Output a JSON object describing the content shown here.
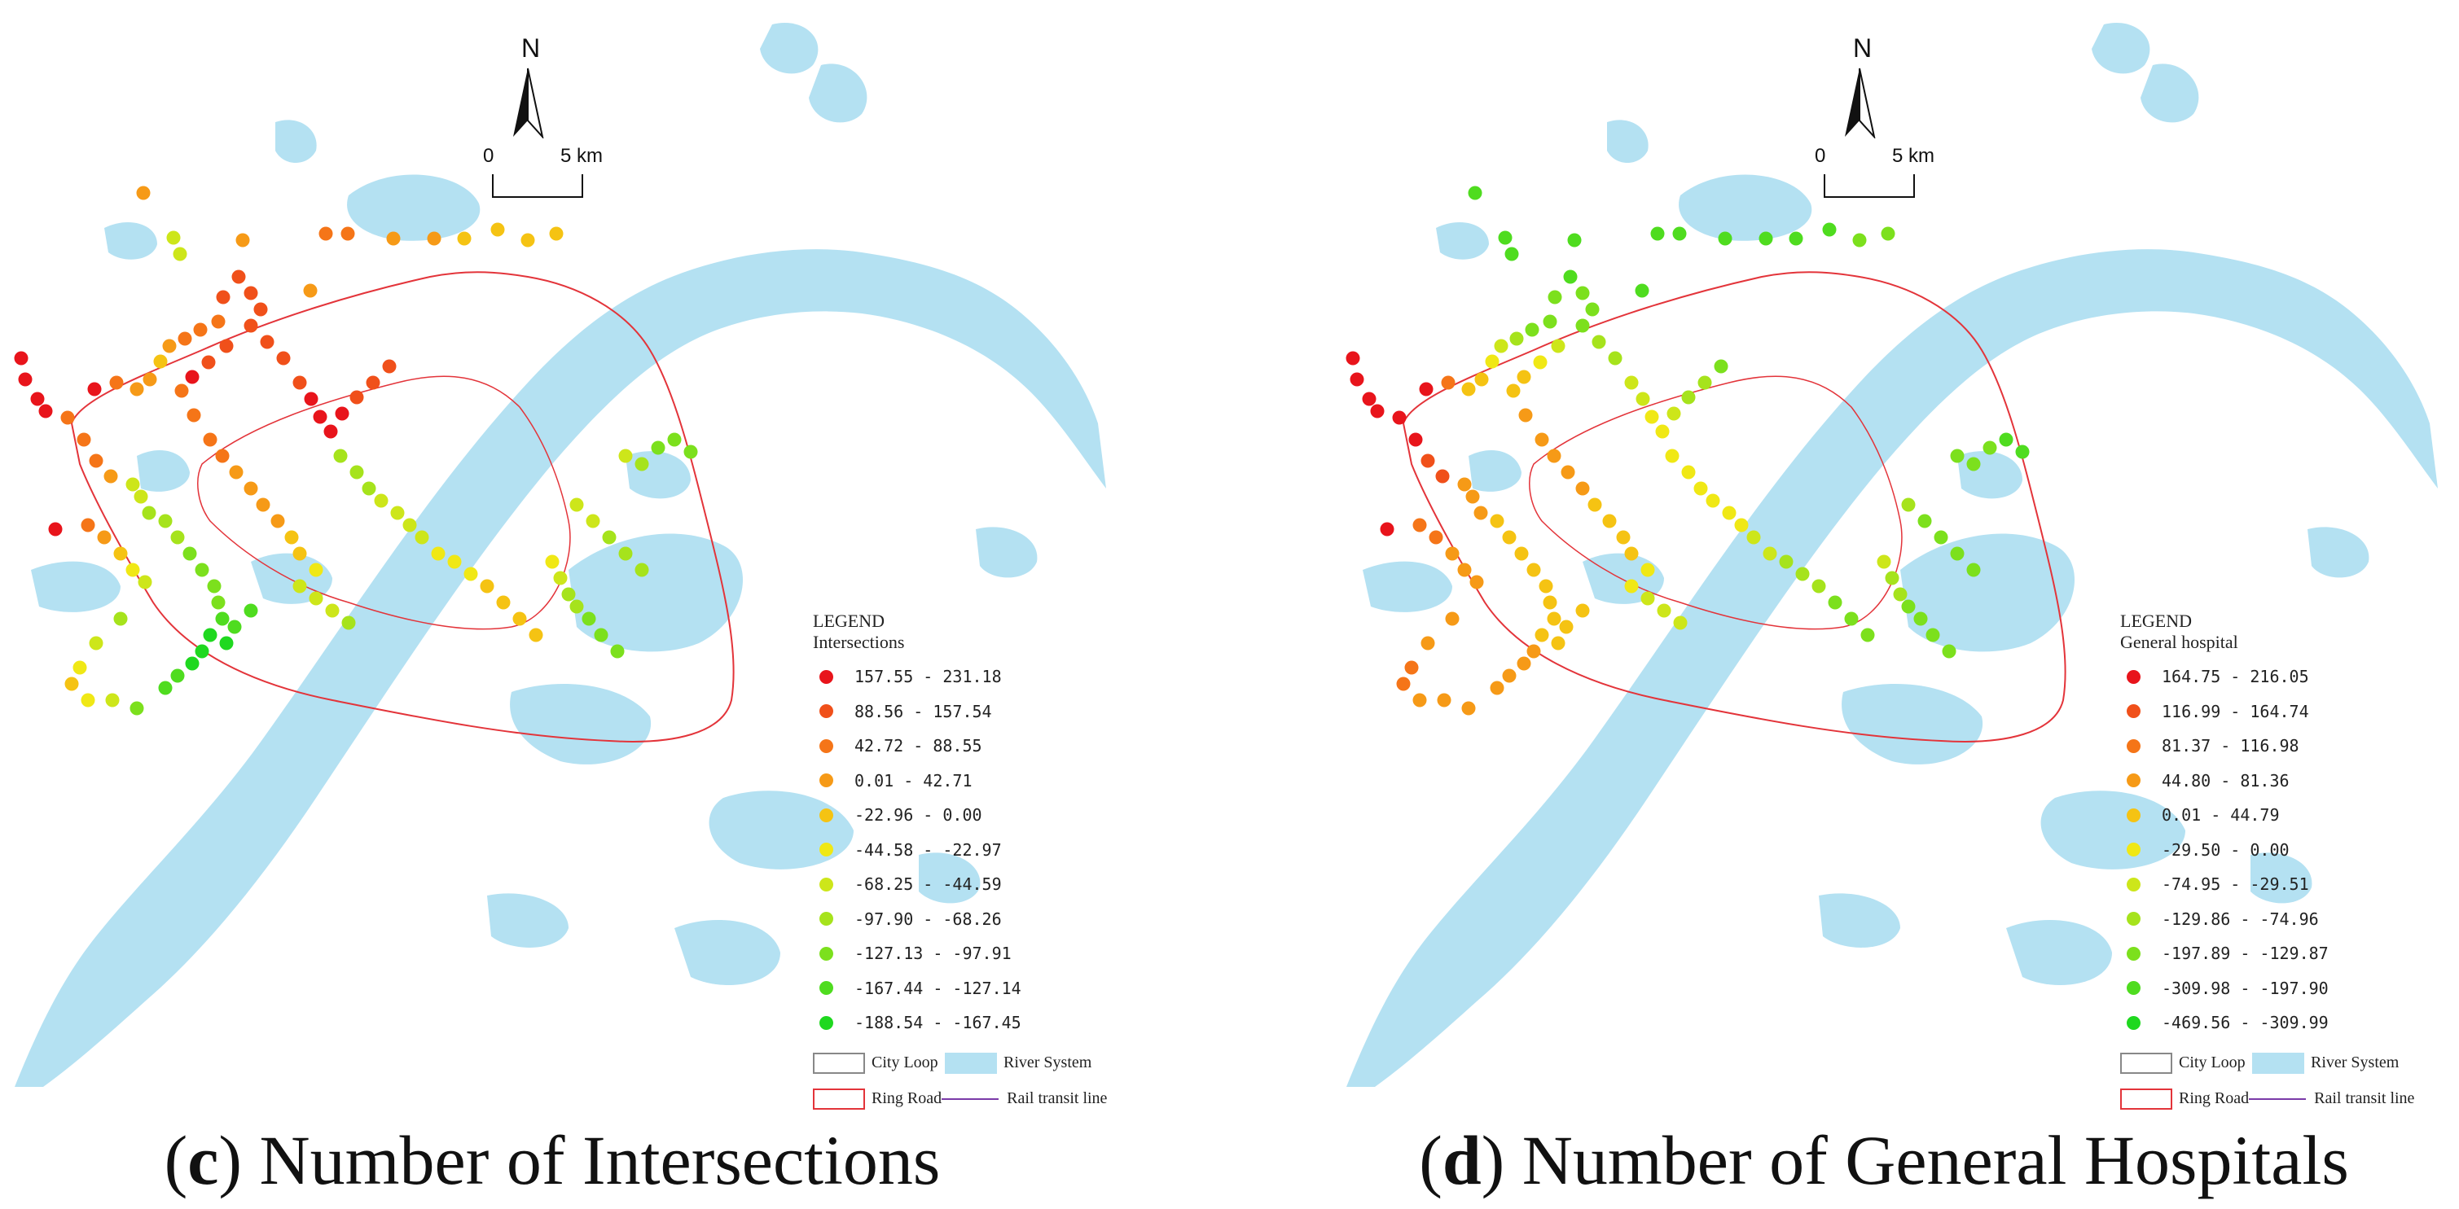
{
  "panels": [
    {
      "id": "c",
      "caption_letter": "c",
      "caption_text": ") Number of Intersections",
      "legend_title": "LEGEND",
      "legend_subtitle": "Intersections",
      "classes": [
        {
          "label": "157.55 - 231.18",
          "color": "#e8141b"
        },
        {
          "label": "88.56 - 157.54",
          "color": "#f0501a"
        },
        {
          "label": "42.72 - 88.55",
          "color": "#f57518"
        },
        {
          "label": "0.01 - 42.71",
          "color": "#f69a17"
        },
        {
          "label": "-22.96 - 0.00",
          "color": "#f5c313"
        },
        {
          "label": "-44.58 - -22.97",
          "color": "#f0e815"
        },
        {
          "label": "-68.25 - -44.59",
          "color": "#cde61a"
        },
        {
          "label": "-97.90 - -68.26",
          "color": "#a6e31c"
        },
        {
          "label": "-127.13 - -97.91",
          "color": "#7ce01d"
        },
        {
          "label": "-167.44 - -127.14",
          "color": "#4fdc1f"
        },
        {
          "label": "-188.54 - -167.45",
          "color": "#1fd81f"
        }
      ]
    },
    {
      "id": "d",
      "caption_letter": "d",
      "caption_text": ") Number of General Hospitals",
      "legend_title": "LEGEND",
      "legend_subtitle": "General hospital",
      "classes": [
        {
          "label": "164.75 - 216.05",
          "color": "#e8141b"
        },
        {
          "label": "116.99 - 164.74",
          "color": "#f0501a"
        },
        {
          "label": "81.37 - 116.98",
          "color": "#f57518"
        },
        {
          "label": "44.80 - 81.36",
          "color": "#f69a17"
        },
        {
          "label": "0.01 - 44.79",
          "color": "#f5c313"
        },
        {
          "label": "-29.50 - 0.00",
          "color": "#f0e815"
        },
        {
          "label": "-74.95 - -29.51",
          "color": "#cde61a"
        },
        {
          "label": "-129.86 - -74.96",
          "color": "#a6e31c"
        },
        {
          "label": "-197.89 - -129.87",
          "color": "#7ce01d"
        },
        {
          "label": "-309.98 - -197.90",
          "color": "#4fdc1f"
        },
        {
          "label": "-469.56 - -309.99",
          "color": "#1fd81f"
        }
      ]
    }
  ],
  "legend_common": {
    "city_loop": "City Loop",
    "river_system": "River System",
    "ring_road": "Ring Road",
    "rail_line": "Rail transit line"
  },
  "north_label": "N",
  "scale_zero": "0",
  "scale_five": "5 km",
  "colors": {
    "water": "#b4e1f2",
    "ring_road": "#e3343a",
    "rail": "#7b3aa8"
  }
}
